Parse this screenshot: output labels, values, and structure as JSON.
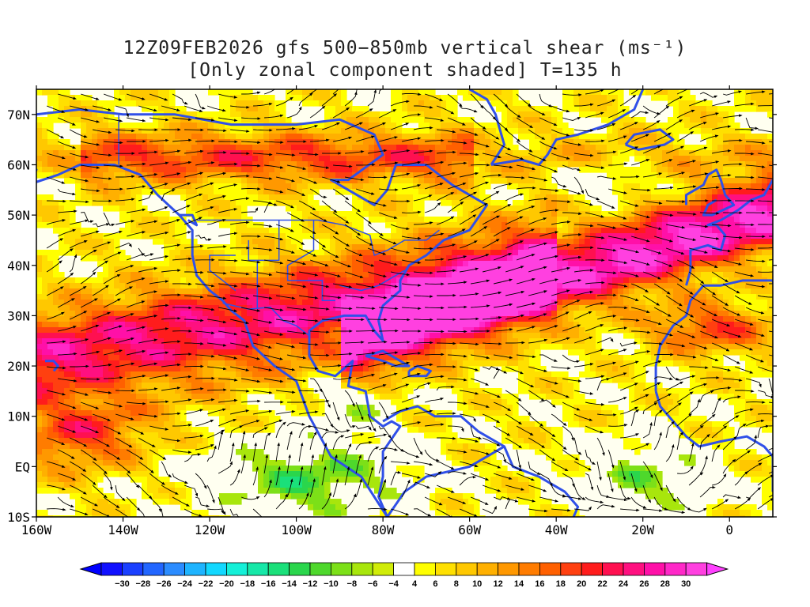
{
  "title": {
    "line1": "12Z09FEB2026 gfs 500−850mb vertical shear (ms⁻¹)",
    "line2": "[Only zonal component shaded] T=135 h"
  },
  "axes": {
    "lon_ticks": [
      {
        "value": -160,
        "label": "160W"
      },
      {
        "value": -140,
        "label": "140W"
      },
      {
        "value": -120,
        "label": "120W"
      },
      {
        "value": -100,
        "label": "100W"
      },
      {
        "value": -80,
        "label": "80W"
      },
      {
        "value": -60,
        "label": "60W"
      },
      {
        "value": -40,
        "label": "40W"
      },
      {
        "value": -20,
        "label": "20W"
      },
      {
        "value": 0,
        "label": "0"
      }
    ],
    "lat_ticks": [
      {
        "value": 70,
        "label": "70N"
      },
      {
        "value": 60,
        "label": "60N"
      },
      {
        "value": 50,
        "label": "50N"
      },
      {
        "value": 40,
        "label": "40N"
      },
      {
        "value": 30,
        "label": "30N"
      },
      {
        "value": 20,
        "label": "20N"
      },
      {
        "value": 10,
        "label": "10N"
      },
      {
        "value": 0,
        "label": "EQ"
      },
      {
        "value": -10,
        "label": "10S"
      }
    ],
    "lon_range": [
      -160,
      10
    ],
    "lat_range": [
      -10,
      75
    ]
  },
  "colorbar": {
    "labels": [
      "−30",
      "−28",
      "−26",
      "−24",
      "−22",
      "−20",
      "−18",
      "−16",
      "−14",
      "−12",
      "−10",
      "−8",
      "−6",
      "−4",
      "4",
      "6",
      "8",
      "10",
      "12",
      "14",
      "16",
      "18",
      "20",
      "22",
      "24",
      "26",
      "28",
      "30"
    ],
    "colors": [
      "#1010ff",
      "#1a40ff",
      "#2266ff",
      "#2b8cff",
      "#1eb4ff",
      "#12d8ff",
      "#14f0d8",
      "#16e8a8",
      "#1ae07a",
      "#2ad64c",
      "#4ed82c",
      "#7ce018",
      "#a8e60c",
      "#d0ec08",
      "#ffffff",
      "#ffff00",
      "#ffe000",
      "#ffc800",
      "#ffb000",
      "#ff9800",
      "#ff7c00",
      "#ff6000",
      "#ff4010",
      "#ff1c1c",
      "#ff1050",
      "#ff1080",
      "#ff10a8",
      "#ff28c8",
      "#ff40e0"
    ],
    "under_color": "#0000ff",
    "over_color": "#ff40ff"
  },
  "field": {
    "land_outline_color": "#3050e8",
    "streamline_color": "#000000"
  }
}
